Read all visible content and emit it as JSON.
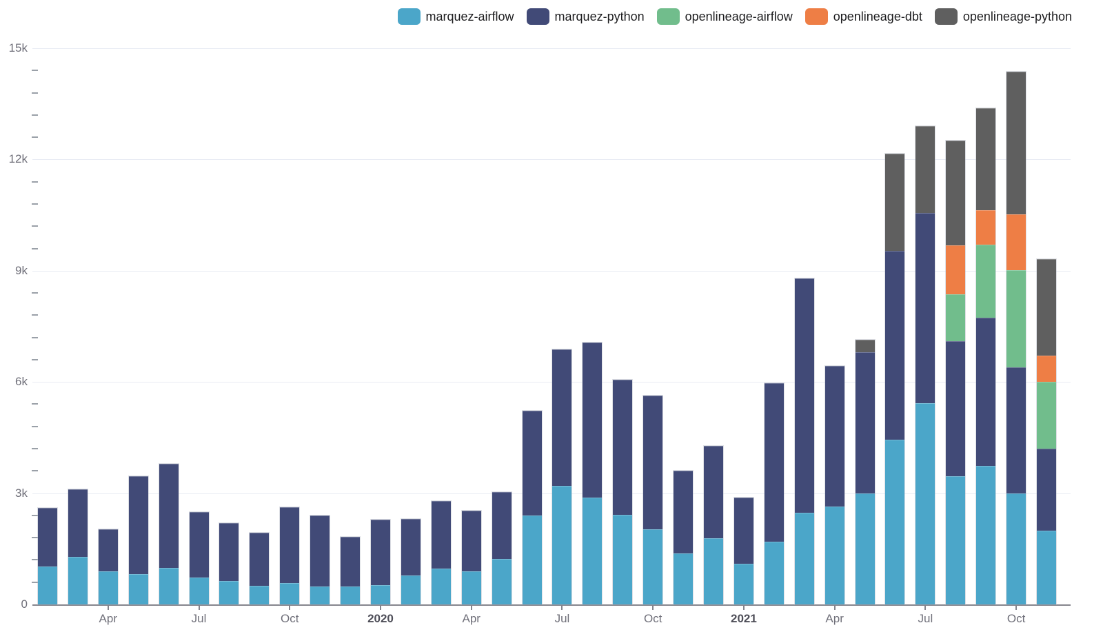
{
  "legend": {
    "items": [
      {
        "label": "marquez-airflow",
        "color": "#4ba6c9"
      },
      {
        "label": "marquez-python",
        "color": "#414a77"
      },
      {
        "label": "openlineage-airflow",
        "color": "#71bd8c"
      },
      {
        "label": "openlineage-dbt",
        "color": "#ee7e45"
      },
      {
        "label": "openlineage-python",
        "color": "#5f5f5f"
      }
    ]
  },
  "chart_data": {
    "type": "bar",
    "stacked": true,
    "grid": "horizontal",
    "legend_position": "top-right",
    "ylim": [
      0,
      15000
    ],
    "y_minor_step": 600,
    "y_ticks": [
      {
        "value": 0,
        "label": "0"
      },
      {
        "value": 3000,
        "label": "3k"
      },
      {
        "value": 6000,
        "label": "6k"
      },
      {
        "value": 9000,
        "label": "9k"
      },
      {
        "value": 12000,
        "label": "12k"
      },
      {
        "value": 15000,
        "label": "15k"
      }
    ],
    "categories": [
      "Feb 2019",
      "Mar 2019",
      "Apr 2019",
      "May 2019",
      "Jun 2019",
      "Jul 2019",
      "Aug 2019",
      "Sep 2019",
      "Oct 2019",
      "Nov 2019",
      "Dec 2019",
      "Jan 2020",
      "Feb 2020",
      "Mar 2020",
      "Apr 2020",
      "May 2020",
      "Jun 2020",
      "Jul 2020",
      "Aug 2020",
      "Sep 2020",
      "Oct 2020",
      "Nov 2020",
      "Dec 2020",
      "Jan 2021",
      "Feb 2021",
      "Mar 2021",
      "Apr 2021",
      "May 2021",
      "Jun 2021",
      "Jul 2021",
      "Aug 2021",
      "Sep 2021",
      "Oct 2021",
      "Nov 2021"
    ],
    "x_tick_labels": [
      {
        "index": 2,
        "label": "Apr",
        "year": false
      },
      {
        "index": 5,
        "label": "Jul",
        "year": false
      },
      {
        "index": 8,
        "label": "Oct",
        "year": false
      },
      {
        "index": 11,
        "label": "2020",
        "year": true
      },
      {
        "index": 14,
        "label": "Apr",
        "year": false
      },
      {
        "index": 17,
        "label": "Jul",
        "year": false
      },
      {
        "index": 20,
        "label": "Oct",
        "year": false
      },
      {
        "index": 23,
        "label": "2021",
        "year": true
      },
      {
        "index": 26,
        "label": "Apr",
        "year": false
      },
      {
        "index": 29,
        "label": "Jul",
        "year": false
      },
      {
        "index": 32,
        "label": "Oct",
        "year": false
      }
    ],
    "series": [
      {
        "name": "marquez-airflow",
        "color": "#4ba6c9",
        "values": [
          1020,
          1290,
          900,
          810,
          990,
          730,
          640,
          510,
          580,
          480,
          490,
          520,
          780,
          970,
          890,
          1230,
          2400,
          3200,
          2890,
          2420,
          2020,
          1370,
          1790,
          1100,
          1690,
          2480,
          2640,
          3000,
          4440,
          5430,
          3460,
          3730,
          3000,
          1990
        ]
      },
      {
        "name": "marquez-python",
        "color": "#414a77",
        "values": [
          1580,
          1810,
          1130,
          2650,
          2810,
          1770,
          1560,
          1430,
          2050,
          1920,
          1340,
          1770,
          1530,
          1820,
          1640,
          1800,
          2830,
          3670,
          4180,
          3640,
          3610,
          2230,
          2480,
          1780,
          4280,
          6320,
          3800,
          3810,
          5100,
          5130,
          3650,
          4010,
          3390,
          2220
        ]
      },
      {
        "name": "openlineage-airflow",
        "color": "#71bd8c",
        "values": [
          0,
          0,
          0,
          0,
          0,
          0,
          0,
          0,
          0,
          0,
          0,
          0,
          0,
          0,
          0,
          0,
          0,
          0,
          0,
          0,
          0,
          0,
          0,
          0,
          0,
          0,
          0,
          0,
          0,
          0,
          1250,
          1960,
          2620,
          1790
        ]
      },
      {
        "name": "openlineage-dbt",
        "color": "#ee7e45",
        "values": [
          0,
          0,
          0,
          0,
          0,
          0,
          0,
          0,
          0,
          0,
          0,
          0,
          0,
          0,
          0,
          0,
          0,
          0,
          0,
          0,
          0,
          0,
          0,
          0,
          0,
          0,
          0,
          0,
          0,
          0,
          1320,
          930,
          1510,
          710
        ]
      },
      {
        "name": "openlineage-python",
        "color": "#5f5f5f",
        "values": [
          0,
          0,
          0,
          0,
          0,
          0,
          0,
          0,
          0,
          0,
          0,
          0,
          0,
          0,
          0,
          0,
          0,
          0,
          0,
          0,
          0,
          0,
          0,
          0,
          0,
          0,
          0,
          330,
          2610,
          2340,
          2830,
          2760,
          3840,
          2610
        ]
      }
    ]
  },
  "colors": {
    "background": "#ffffff",
    "gridline": "#e8ebf3",
    "axis_line": "#85858d",
    "tick_text": "#70707a",
    "year_text": "#4e4e58"
  }
}
